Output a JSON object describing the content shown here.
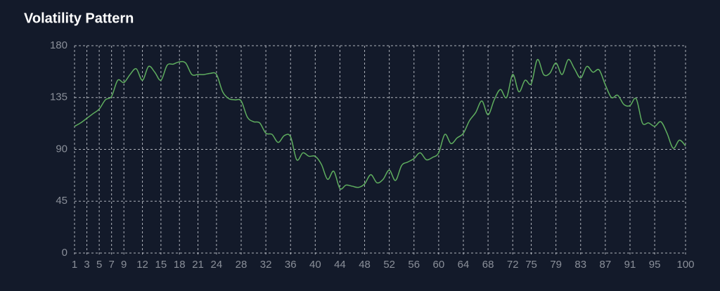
{
  "chart_data": {
    "type": "line",
    "title": "Volatility Pattern",
    "x": [
      1,
      2,
      3,
      4,
      5,
      6,
      7,
      8,
      9,
      10,
      11,
      12,
      13,
      14,
      15,
      16,
      17,
      18,
      19,
      20,
      21,
      22,
      23,
      24,
      25,
      26,
      27,
      28,
      29,
      30,
      31,
      32,
      33,
      34,
      35,
      36,
      37,
      38,
      39,
      40,
      41,
      42,
      43,
      44,
      45,
      46,
      47,
      48,
      49,
      50,
      51,
      52,
      53,
      54,
      55,
      56,
      57,
      58,
      59,
      60,
      61,
      62,
      63,
      64,
      65,
      66,
      67,
      68,
      69,
      70,
      71,
      72,
      73,
      74,
      75,
      76,
      77,
      78,
      79,
      80,
      81,
      82,
      83,
      84,
      85,
      86,
      87,
      88,
      89,
      90,
      91,
      92,
      93,
      94,
      95,
      96,
      97,
      98,
      99,
      100
    ],
    "series": [
      {
        "color": "#5fae5f",
        "values": [
          110,
          113,
          117,
          121,
          125,
          133,
          136,
          150,
          148,
          155,
          160,
          150,
          162,
          157,
          150,
          163,
          164,
          166,
          165,
          155,
          155,
          155,
          156,
          155,
          140,
          134,
          133,
          132,
          118,
          114,
          113,
          104,
          103,
          96,
          102,
          101,
          81,
          87,
          84,
          84,
          77,
          64,
          71,
          56,
          59,
          58,
          57,
          60,
          68,
          61,
          64,
          72,
          63,
          76,
          79,
          82,
          87,
          81,
          83,
          87,
          103,
          95,
          100,
          104,
          115,
          122,
          132,
          120,
          133,
          142,
          135,
          155,
          140,
          150,
          147,
          168,
          155,
          156,
          165,
          155,
          168,
          160,
          152,
          162,
          157,
          159,
          146,
          135,
          137,
          129,
          128,
          134,
          113,
          113,
          110,
          114,
          104,
          91,
          98,
          93
        ]
      }
    ],
    "xlim": [
      1,
      100
    ],
    "xticks": [
      1,
      3,
      5,
      7,
      9,
      12,
      15,
      18,
      21,
      24,
      28,
      32,
      36,
      40,
      44,
      48,
      52,
      56,
      60,
      64,
      68,
      72,
      75,
      79,
      83,
      87,
      91,
      95,
      100
    ],
    "ylim": [
      0,
      180
    ],
    "yticks": [
      0,
      45,
      90,
      135,
      180
    ],
    "grid": true
  }
}
